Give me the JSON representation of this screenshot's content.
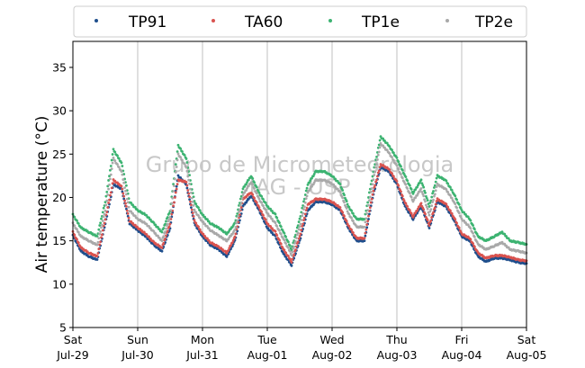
{
  "chart_data": {
    "type": "scatter",
    "title": "",
    "xlabel": "",
    "ylabel": "Air temperature (°C)",
    "ylim": [
      5,
      38
    ],
    "xlim": [
      "2023-07-29 00:00",
      "2023-08-05 00:00"
    ],
    "yticks": [
      5,
      10,
      15,
      20,
      25,
      30,
      35
    ],
    "xticks": [
      {
        "day": "Sat",
        "date": "Jul-29"
      },
      {
        "day": "Sun",
        "date": "Jul-30"
      },
      {
        "day": "Mon",
        "date": "Jul-31"
      },
      {
        "day": "Tue",
        "date": "Aug-01"
      },
      {
        "day": "Wed",
        "date": "Aug-02"
      },
      {
        "day": "Thu",
        "date": "Aug-03"
      },
      {
        "day": "Fri",
        "date": "Aug-04"
      },
      {
        "day": "Sat",
        "date": "Aug-05"
      }
    ],
    "grid": "vertical lines at day boundaries",
    "legend_position": "top, above plot",
    "watermark": [
      "Grupo de Micrometeorologia",
      "IAG - USP"
    ],
    "series": [
      {
        "name": "TP91",
        "color": "#1f4e8c",
        "x": [
          "2023-07-29 00:00",
          "2023-07-29 03:00",
          "2023-07-29 06:00",
          "2023-07-29 09:00",
          "2023-07-29 12:00",
          "2023-07-29 15:00",
          "2023-07-29 18:00",
          "2023-07-29 21:00",
          "2023-07-30 00:00",
          "2023-07-30 03:00",
          "2023-07-30 06:00",
          "2023-07-30 09:00",
          "2023-07-30 12:00",
          "2023-07-30 15:00",
          "2023-07-30 18:00",
          "2023-07-30 21:00",
          "2023-07-31 00:00",
          "2023-07-31 03:00",
          "2023-07-31 06:00",
          "2023-07-31 09:00",
          "2023-07-31 12:00",
          "2023-07-31 15:00",
          "2023-07-31 18:00",
          "2023-07-31 21:00",
          "2023-08-01 00:00",
          "2023-08-01 03:00",
          "2023-08-01 06:00",
          "2023-08-01 09:00",
          "2023-08-01 12:00",
          "2023-08-01 15:00",
          "2023-08-01 18:00",
          "2023-08-01 21:00",
          "2023-08-02 00:00",
          "2023-08-02 03:00",
          "2023-08-02 06:00",
          "2023-08-02 09:00",
          "2023-08-02 12:00",
          "2023-08-02 15:00",
          "2023-08-02 18:00",
          "2023-08-02 21:00",
          "2023-08-03 00:00",
          "2023-08-03 03:00",
          "2023-08-03 06:00",
          "2023-08-03 09:00",
          "2023-08-03 12:00",
          "2023-08-03 15:00",
          "2023-08-03 18:00",
          "2023-08-03 21:00",
          "2023-08-04 00:00",
          "2023-08-04 03:00",
          "2023-08-04 06:00",
          "2023-08-04 09:00",
          "2023-08-04 12:00",
          "2023-08-04 15:00",
          "2023-08-04 18:00",
          "2023-08-04 21:00",
          "2023-08-05 00:00"
        ],
        "y": [
          15.6,
          13.8,
          13.2,
          12.8,
          17.0,
          21.5,
          21.0,
          17.0,
          16.2,
          15.5,
          14.5,
          13.8,
          16.5,
          22.5,
          21.5,
          17.0,
          15.5,
          14.5,
          14.0,
          13.2,
          15.0,
          19.0,
          20.2,
          18.5,
          16.5,
          15.5,
          13.5,
          12.2,
          15.0,
          18.5,
          19.5,
          19.5,
          19.2,
          18.5,
          16.5,
          15.0,
          15.0,
          20.0,
          23.5,
          23.0,
          21.5,
          19.0,
          17.5,
          19.0,
          16.5,
          19.5,
          19.0,
          17.5,
          15.5,
          15.0,
          13.2,
          12.6,
          13.0,
          13.0,
          12.8,
          12.5,
          12.4
        ]
      },
      {
        "name": "TA60",
        "color": "#d9534f",
        "x": [
          "2023-07-29 00:00",
          "2023-07-29 03:00",
          "2023-07-29 06:00",
          "2023-07-29 09:00",
          "2023-07-29 12:00",
          "2023-07-29 15:00",
          "2023-07-29 18:00",
          "2023-07-29 21:00",
          "2023-07-30 00:00",
          "2023-07-30 03:00",
          "2023-07-30 06:00",
          "2023-07-30 09:00",
          "2023-07-30 12:00",
          "2023-07-30 15:00",
          "2023-07-30 18:00",
          "2023-07-30 21:00",
          "2023-07-31 00:00",
          "2023-07-31 03:00",
          "2023-07-31 06:00",
          "2023-07-31 09:00",
          "2023-07-31 12:00",
          "2023-07-31 15:00",
          "2023-07-31 18:00",
          "2023-07-31 21:00",
          "2023-08-01 00:00",
          "2023-08-01 03:00",
          "2023-08-01 06:00",
          "2023-08-01 09:00",
          "2023-08-01 12:00",
          "2023-08-01 15:00",
          "2023-08-01 18:00",
          "2023-08-01 21:00",
          "2023-08-02 00:00",
          "2023-08-02 03:00",
          "2023-08-02 06:00",
          "2023-08-02 09:00",
          "2023-08-02 12:00",
          "2023-08-02 15:00",
          "2023-08-02 18:00",
          "2023-08-02 21:00",
          "2023-08-03 00:00",
          "2023-08-03 03:00",
          "2023-08-03 06:00",
          "2023-08-03 09:00",
          "2023-08-03 12:00",
          "2023-08-03 15:00",
          "2023-08-03 18:00",
          "2023-08-03 21:00",
          "2023-08-04 00:00",
          "2023-08-04 03:00",
          "2023-08-04 06:00",
          "2023-08-04 09:00",
          "2023-08-04 12:00",
          "2023-08-04 15:00",
          "2023-08-04 18:00",
          "2023-08-04 21:00",
          "2023-08-05 00:00"
        ],
        "y": [
          16.0,
          14.2,
          13.6,
          13.2,
          17.5,
          22.0,
          21.3,
          17.3,
          16.5,
          15.8,
          14.8,
          14.2,
          17.0,
          22.0,
          21.8,
          17.3,
          15.8,
          14.8,
          14.3,
          13.6,
          15.4,
          19.8,
          20.6,
          18.8,
          17.0,
          16.0,
          14.0,
          12.6,
          15.5,
          19.2,
          19.8,
          19.8,
          19.5,
          18.8,
          16.8,
          15.3,
          15.3,
          20.4,
          23.8,
          23.3,
          21.8,
          19.4,
          17.8,
          19.3,
          16.8,
          19.8,
          19.3,
          17.8,
          15.8,
          15.3,
          13.6,
          13.0,
          13.3,
          13.3,
          13.1,
          12.8,
          12.7
        ]
      },
      {
        "name": "TP1e",
        "color": "#3cb371",
        "x": [
          "2023-07-29 00:00",
          "2023-07-29 03:00",
          "2023-07-29 06:00",
          "2023-07-29 09:00",
          "2023-07-29 12:00",
          "2023-07-29 15:00",
          "2023-07-29 18:00",
          "2023-07-29 21:00",
          "2023-07-30 00:00",
          "2023-07-30 03:00",
          "2023-07-30 06:00",
          "2023-07-30 09:00",
          "2023-07-30 12:00",
          "2023-07-30 15:00",
          "2023-07-30 18:00",
          "2023-07-30 21:00",
          "2023-07-31 00:00",
          "2023-07-31 03:00",
          "2023-07-31 06:00",
          "2023-07-31 09:00",
          "2023-07-31 12:00",
          "2023-07-31 15:00",
          "2023-07-31 18:00",
          "2023-07-31 21:00",
          "2023-08-01 00:00",
          "2023-08-01 03:00",
          "2023-08-01 06:00",
          "2023-08-01 09:00",
          "2023-08-01 12:00",
          "2023-08-01 15:00",
          "2023-08-01 18:00",
          "2023-08-01 21:00",
          "2023-08-02 00:00",
          "2023-08-02 03:00",
          "2023-08-02 06:00",
          "2023-08-02 09:00",
          "2023-08-02 12:00",
          "2023-08-02 15:00",
          "2023-08-02 18:00",
          "2023-08-02 21:00",
          "2023-08-03 00:00",
          "2023-08-03 03:00",
          "2023-08-03 06:00",
          "2023-08-03 09:00",
          "2023-08-03 12:00",
          "2023-08-03 15:00",
          "2023-08-03 18:00",
          "2023-08-03 21:00",
          "2023-08-04 00:00",
          "2023-08-04 03:00",
          "2023-08-04 06:00",
          "2023-08-04 09:00",
          "2023-08-04 12:00",
          "2023-08-04 15:00",
          "2023-08-04 18:00",
          "2023-08-04 21:00",
          "2023-08-05 00:00"
        ],
        "y": [
          18.0,
          16.5,
          16.0,
          15.5,
          19.5,
          25.5,
          24.0,
          19.5,
          18.5,
          18.0,
          17.0,
          16.0,
          18.5,
          26.0,
          24.5,
          19.5,
          18.0,
          17.0,
          16.5,
          15.8,
          17.0,
          21.0,
          22.5,
          20.5,
          19.0,
          18.0,
          16.0,
          14.0,
          17.5,
          21.5,
          23.0,
          23.0,
          22.5,
          21.5,
          19.0,
          17.5,
          17.5,
          22.5,
          27.0,
          26.0,
          24.5,
          22.5,
          20.5,
          22.0,
          19.0,
          22.5,
          22.0,
          20.5,
          18.5,
          17.5,
          15.5,
          15.0,
          15.5,
          16.0,
          15.0,
          14.8,
          14.6
        ]
      },
      {
        "name": "TP2e",
        "color": "#a9a9a9",
        "x": [
          "2023-07-29 00:00",
          "2023-07-29 03:00",
          "2023-07-29 06:00",
          "2023-07-29 09:00",
          "2023-07-29 12:00",
          "2023-07-29 15:00",
          "2023-07-29 18:00",
          "2023-07-29 21:00",
          "2023-07-30 00:00",
          "2023-07-30 03:00",
          "2023-07-30 06:00",
          "2023-07-30 09:00",
          "2023-07-30 12:00",
          "2023-07-30 15:00",
          "2023-07-30 18:00",
          "2023-07-30 21:00",
          "2023-07-31 00:00",
          "2023-07-31 03:00",
          "2023-07-31 06:00",
          "2023-07-31 09:00",
          "2023-07-31 12:00",
          "2023-07-31 15:00",
          "2023-07-31 18:00",
          "2023-07-31 21:00",
          "2023-08-01 00:00",
          "2023-08-01 03:00",
          "2023-08-01 06:00",
          "2023-08-01 09:00",
          "2023-08-01 12:00",
          "2023-08-01 15:00",
          "2023-08-01 18:00",
          "2023-08-01 21:00",
          "2023-08-02 00:00",
          "2023-08-02 03:00",
          "2023-08-02 06:00",
          "2023-08-02 09:00",
          "2023-08-02 12:00",
          "2023-08-02 15:00",
          "2023-08-02 18:00",
          "2023-08-02 21:00",
          "2023-08-03 00:00",
          "2023-08-03 03:00",
          "2023-08-03 06:00",
          "2023-08-03 09:00",
          "2023-08-03 12:00",
          "2023-08-03 15:00",
          "2023-08-03 18:00",
          "2023-08-03 21:00",
          "2023-08-04 00:00",
          "2023-08-04 03:00",
          "2023-08-04 06:00",
          "2023-08-04 09:00",
          "2023-08-04 12:00",
          "2023-08-04 15:00",
          "2023-08-04 18:00",
          "2023-08-04 21:00",
          "2023-08-05 00:00"
        ],
        "y": [
          17.0,
          15.5,
          15.0,
          14.5,
          18.5,
          24.5,
          23.0,
          18.5,
          17.5,
          17.0,
          16.0,
          15.0,
          17.8,
          25.0,
          23.5,
          18.5,
          17.2,
          16.2,
          15.6,
          15.0,
          16.2,
          20.3,
          21.8,
          19.8,
          18.2,
          17.0,
          15.2,
          13.4,
          16.6,
          20.6,
          22.0,
          22.0,
          21.6,
          20.6,
          18.2,
          16.6,
          16.6,
          21.6,
          26.2,
          25.2,
          23.6,
          21.6,
          19.6,
          21.0,
          18.0,
          21.5,
          21.0,
          19.6,
          17.5,
          16.6,
          14.6,
          14.0,
          14.4,
          14.8,
          14.0,
          13.8,
          13.6
        ]
      }
    ]
  }
}
